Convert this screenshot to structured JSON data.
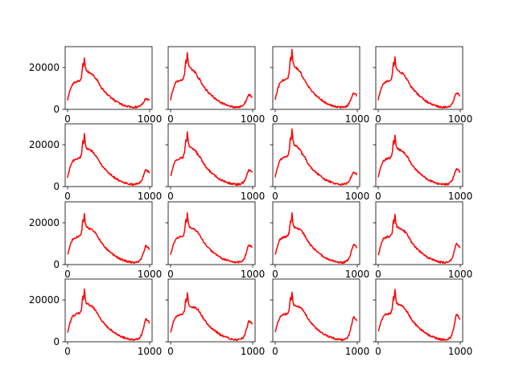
{
  "chart_data": {
    "type": "line",
    "layout": "4x4 grid of small multiples, shared y axis per row",
    "line_color": "#ff0000",
    "x_range": [
      0,
      1000
    ],
    "y_range": [
      0,
      30000
    ],
    "x_ticks": [
      0,
      1000
    ],
    "x_tick_labels": [
      "0",
      "1000"
    ],
    "y_ticks": [
      0,
      20000
    ],
    "y_tick_labels": [
      "0",
      "20000"
    ],
    "grid": false,
    "legend": "none",
    "title": "",
    "xlabel": "",
    "ylabel": "",
    "series_shape": {
      "x": [
        0,
        30,
        60,
        100,
        150,
        170,
        185,
        195,
        205,
        215,
        230,
        260,
        300,
        330,
        360,
        400,
        450,
        500,
        550,
        600,
        650,
        700,
        750,
        800,
        850,
        880,
        900,
        920,
        950,
        980,
        1000
      ],
      "base_values": [
        4500,
        9000,
        12000,
        13000,
        13500,
        15000,
        21000,
        19000,
        24500,
        19500,
        17500,
        17000,
        16500,
        15500,
        14000,
        11000,
        8500,
        6500,
        5000,
        3500,
        2500,
        1800,
        1200,
        1000,
        1200,
        1700,
        2500,
        4000,
        6500,
        6000,
        5200
      ]
    },
    "panels": [
      {
        "row": 0,
        "col": 0,
        "peak": 25500,
        "tail": 5000
      },
      {
        "row": 0,
        "col": 1,
        "peak": 28000,
        "tail": 7000
      },
      {
        "row": 0,
        "col": 2,
        "peak": 29000,
        "tail": 8000
      },
      {
        "row": 0,
        "col": 3,
        "peak": 26000,
        "tail": 8000
      },
      {
        "row": 1,
        "col": 0,
        "peak": 25500,
        "tail": 8000
      },
      {
        "row": 1,
        "col": 1,
        "peak": 26500,
        "tail": 8000
      },
      {
        "row": 1,
        "col": 2,
        "peak": 28000,
        "tail": 7000
      },
      {
        "row": 1,
        "col": 3,
        "peak": 25500,
        "tail": 8500
      },
      {
        "row": 2,
        "col": 0,
        "peak": 25000,
        "tail": 9000
      },
      {
        "row": 2,
        "col": 1,
        "peak": 25000,
        "tail": 9500
      },
      {
        "row": 2,
        "col": 2,
        "peak": 25000,
        "tail": 9500
      },
      {
        "row": 2,
        "col": 3,
        "peak": 25000,
        "tail": 10000
      },
      {
        "row": 3,
        "col": 0,
        "peak": 25500,
        "tail": 11000
      },
      {
        "row": 3,
        "col": 1,
        "peak": 24000,
        "tail": 10000
      },
      {
        "row": 3,
        "col": 2,
        "peak": 24500,
        "tail": 12000
      },
      {
        "row": 3,
        "col": 3,
        "peak": 25500,
        "tail": 13000
      }
    ]
  }
}
